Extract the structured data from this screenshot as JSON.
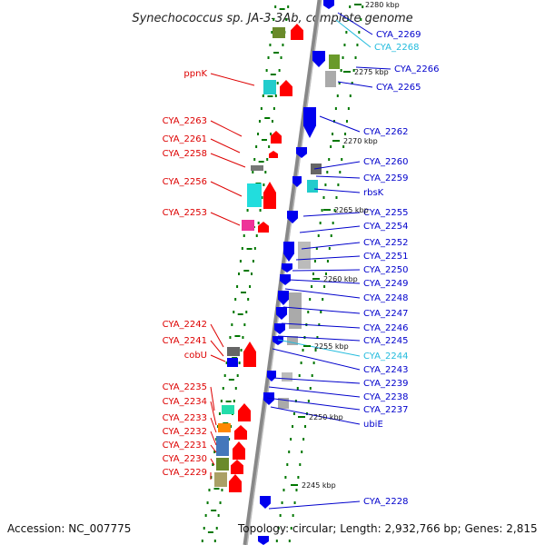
{
  "title": "Synechococcus sp. JA-3-3Ab, complete genome",
  "footer": {
    "accession": "Accession: NC_007775",
    "stats": "Topology: circular; Length: 2,932,766 bp; Genes: 2,815"
  },
  "colors": {
    "forward_label": "#dd0000",
    "reverse_label": "#0000cc",
    "highlight_label": "#22bbdd",
    "forward_gene": "#ff0000",
    "reverse_gene": "#0000ee",
    "backbone": "#888888",
    "tick_green": "#007700"
  },
  "scale": {
    "ticks": [
      "2280 kbp",
      "2275 kbp",
      "2270 kbp",
      "2265 kbp",
      "2260 kbp",
      "2255 kbp",
      "2250 kbp",
      "2245 kbp"
    ]
  },
  "left_labels": [
    "ppnK",
    "CYA_2263",
    "CYA_2261",
    "CYA_2258",
    "CYA_2256",
    "CYA_2253",
    "CYA_2242",
    "CYA_2241",
    "cobU",
    "CYA_2235",
    "CYA_2234",
    "CYA_2233",
    "CYA_2232",
    "CYA_2231",
    "CYA_2230",
    "CYA_2229"
  ],
  "right_labels": [
    "CYA_2269",
    "CYA_2268",
    "CYA_2266",
    "CYA_2265",
    "CYA_2262",
    "CYA_2260",
    "CYA_2259",
    "rbsK",
    "CYA_2255",
    "CYA_2254",
    "CYA_2252",
    "CYA_2251",
    "CYA_2250",
    "CYA_2249",
    "CYA_2248",
    "CYA_2247",
    "CYA_2246",
    "CYA_2245",
    "CYA_2244",
    "CYA_2243",
    "CYA_2239",
    "CYA_2238",
    "CYA_2237",
    "ubiE",
    "CYA_2228"
  ]
}
